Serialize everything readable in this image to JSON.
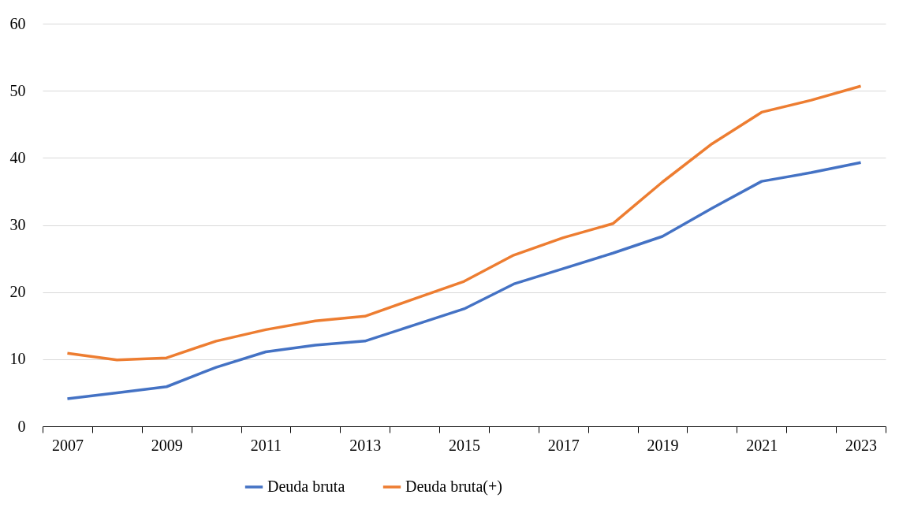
{
  "chart_data": {
    "type": "line",
    "categories": [
      "2007",
      null,
      "2009",
      null,
      "2011",
      null,
      "2013",
      null,
      "2015",
      null,
      "2017",
      null,
      "2019",
      null,
      "2021",
      null,
      "2023"
    ],
    "series": [
      {
        "name": "Deuda bruta",
        "color": "#4472c4",
        "values": [
          4.1,
          5.0,
          5.9,
          8.8,
          11.1,
          12.1,
          12.7,
          15.1,
          17.5,
          21.2,
          23.5,
          25.8,
          28.3,
          32.5,
          36.5,
          37.8,
          39.3
        ]
      },
      {
        "name": "Deuda bruta(+)",
        "color": "#ed7d31",
        "values": [
          10.9,
          9.9,
          10.2,
          12.7,
          14.4,
          15.7,
          16.4,
          19.0,
          21.6,
          25.5,
          28.1,
          30.2,
          36.4,
          42.1,
          46.8,
          48.6,
          50.7
        ]
      }
    ],
    "ylim": [
      0,
      60
    ],
    "yticks": [
      0,
      10,
      20,
      30,
      40,
      50,
      60
    ],
    "grid": "y",
    "legend": "bottom",
    "marker": "none",
    "line_style": "solid"
  }
}
